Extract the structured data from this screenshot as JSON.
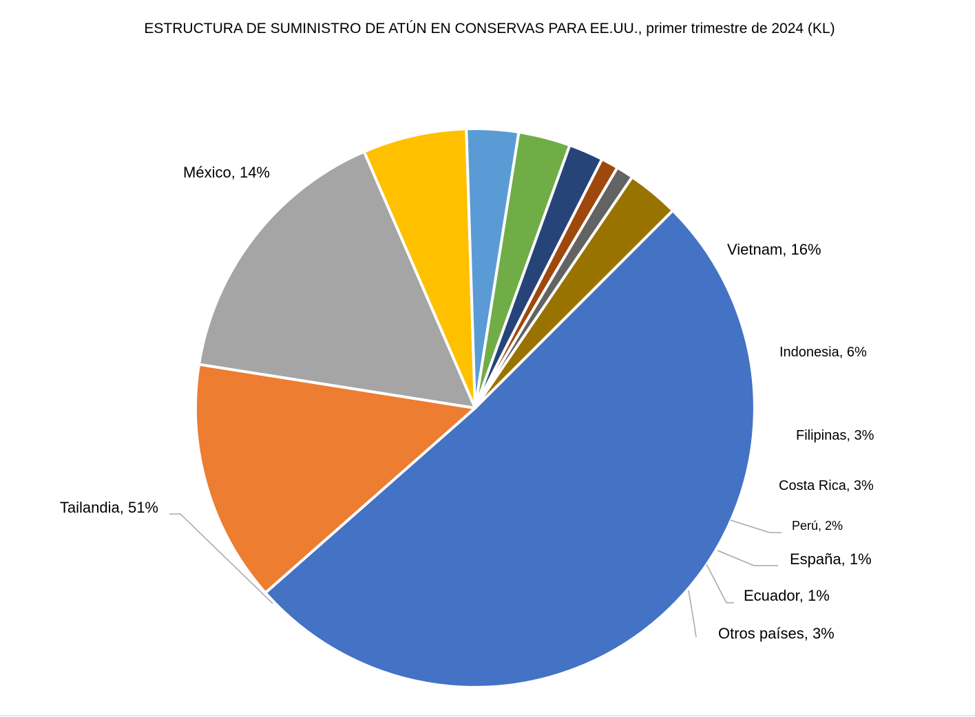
{
  "chart_data": {
    "type": "pie",
    "title": "ESTRUCTURA DE SUMINISTRO DE ATÚN EN CONSERVAS PARA EE.UU., primer trimestre de 2024 (KL)",
    "unit": "%",
    "slices": [
      {
        "name": "Tailandia",
        "value": 51,
        "label": "Tailandia, 51%",
        "color": "#4472C4"
      },
      {
        "name": "México",
        "value": 14,
        "label": "México, 14%",
        "color": "#ED7D31"
      },
      {
        "name": "Vietnam",
        "value": 16,
        "label": "Vietnam, 16%",
        "color": "#A5A5A5"
      },
      {
        "name": "Indonesia",
        "value": 6,
        "label": "Indonesia, 6%",
        "color": "#FFC000"
      },
      {
        "name": "Filipinas",
        "value": 3,
        "label": "Filipinas, 3%",
        "color": "#5B9BD5"
      },
      {
        "name": "Costa Rica",
        "value": 3,
        "label": "Costa Rica, 3%",
        "color": "#70AD47"
      },
      {
        "name": "Perú",
        "value": 2,
        "label": "Perú, 2%",
        "color": "#264478"
      },
      {
        "name": "España",
        "value": 1,
        "label": "España, 1%",
        "color": "#9E480E"
      },
      {
        "name": "Ecuador",
        "value": 1,
        "label": "Ecuador, 1%",
        "color": "#636363"
      },
      {
        "name": "Otros países",
        "value": 3,
        "label": "Otros países, 3%",
        "color": "#997300"
      }
    ]
  }
}
